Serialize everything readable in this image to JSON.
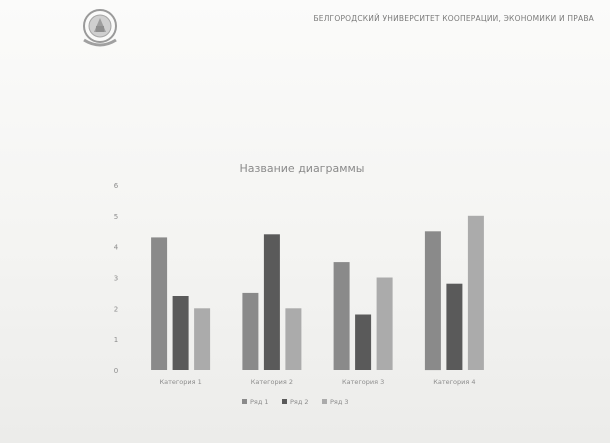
{
  "header": {
    "university_name": "БЕЛГОРОДСКИЙ УНИВЕРСИТЕТ КООПЕРАЦИИ, ЭКОНОМИКИ И ПРАВА"
  },
  "colors": {
    "series": [
      "#8a8a8a",
      "#5a5a5a",
      "#ababab"
    ],
    "axis_text": "#8c8c8c",
    "title_text": "#8a8a8a"
  },
  "chart_data": {
    "type": "bar",
    "title": "Название диаграммы",
    "categories": [
      "Категория 1",
      "Категория 2",
      "Категория 3",
      "Категория 4"
    ],
    "series": [
      {
        "name": "Ряд 1",
        "values": [
          4.3,
          2.5,
          3.5,
          4.5
        ]
      },
      {
        "name": "Ряд 2",
        "values": [
          2.4,
          4.4,
          1.8,
          2.8
        ]
      },
      {
        "name": "Ряд 3",
        "values": [
          2.0,
          2.0,
          3.0,
          5.0
        ]
      }
    ],
    "ylim": [
      0,
      6
    ],
    "yticks": [
      0,
      1,
      2,
      3,
      4,
      5,
      6
    ],
    "grid": false,
    "legend": "bottom"
  }
}
